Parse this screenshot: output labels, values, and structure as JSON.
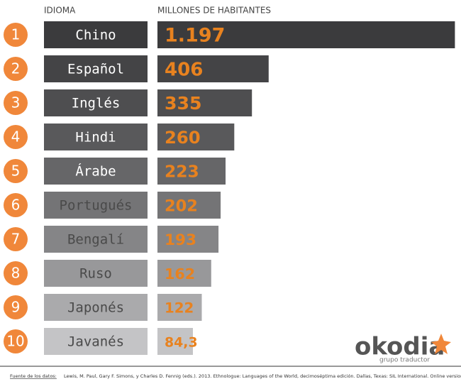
{
  "chart_data": {
    "type": "bar",
    "category_header": "IDIOMA",
    "value_header": "MILLONES DE HABITANTES",
    "ranks": [
      1,
      2,
      3,
      4,
      5,
      6,
      7,
      8,
      9,
      10
    ],
    "categories": [
      "Chino",
      "Español",
      "Inglés",
      "Hindi",
      "Árabe",
      "Portugués",
      "Bengalí",
      "Ruso",
      "Japonés",
      "Javanés"
    ],
    "values": [
      1197,
      406,
      335,
      260,
      223,
      202,
      193,
      162,
      122,
      84.3
    ],
    "value_labels": [
      "1.197",
      "406",
      "335",
      "260",
      "223",
      "202",
      "193",
      "162",
      "122",
      "84,3"
    ],
    "colors": [
      "#3b3b3d",
      "#444446",
      "#4e4e50",
      "#59595b",
      "#666668",
      "#747476",
      "#858587",
      "#98989a",
      "#aaaaac",
      "#c4c4c6"
    ],
    "value_color": "#e8821f",
    "rank_color": "#f0873a"
  },
  "source": {
    "label": "Fuente de los datos:",
    "text": "Lewis, M. Paul, Gary F. Simons, y Charles D. Fennig (eds.). 2013. Ethnologue: Languages of the World, decimoséptima edición. Dallas, Texas: SIL International. Online version: http://www.ethnologue.com"
  },
  "logo": {
    "name": "okodia",
    "tagline": "grupo traductor"
  }
}
